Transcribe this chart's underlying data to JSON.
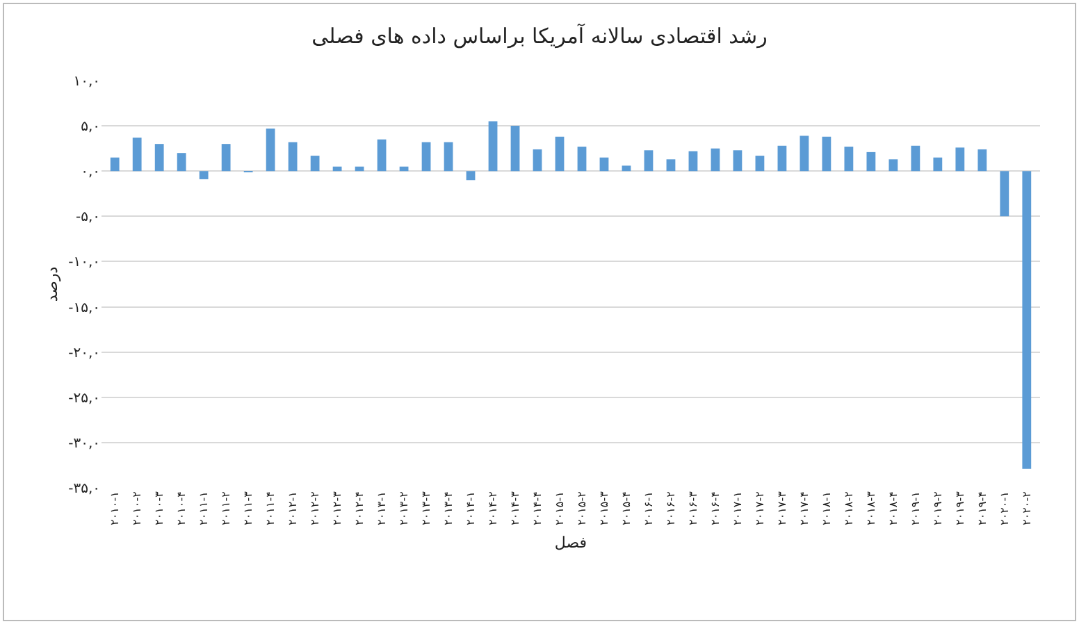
{
  "chart_data": {
    "type": "bar",
    "title": "رشد اقتصادی سالانه آمریکا براساس داده های فصلی",
    "xlabel": "فصل",
    "ylabel": "درصد",
    "categories": [
      "۲۰۱۰-۱",
      "۲۰۱۰-۲",
      "۲۰۱۰-۳",
      "۲۰۱۰-۴",
      "۲۰۱۱-۱",
      "۲۰۱۱-۲",
      "۲۰۱۱-۳",
      "۲۰۱۱-۴",
      "۲۰۱۲-۱",
      "۲۰۱۲-۲",
      "۲۰۱۲-۳",
      "۲۰۱۲-۴",
      "۲۰۱۳-۱",
      "۲۰۱۳-۲",
      "۲۰۱۳-۳",
      "۲۰۱۳-۴",
      "۲۰۱۴-۱",
      "۲۰۱۴-۲",
      "۲۰۱۴-۳",
      "۲۰۱۴-۴",
      "۲۰۱۵-۱",
      "۲۰۱۵-۲",
      "۲۰۱۵-۳",
      "۲۰۱۵-۴",
      "۲۰۱۶-۱",
      "۲۰۱۶-۲",
      "۲۰۱۶-۳",
      "۲۰۱۶-۴",
      "۲۰۱۷-۱",
      "۲۰۱۷-۲",
      "۲۰۱۷-۳",
      "۲۰۱۷-۴",
      "۲۰۱۸-۱",
      "۲۰۱۸-۲",
      "۲۰۱۸-۳",
      "۲۰۱۸-۴",
      "۲۰۱۹-۱",
      "۲۰۱۹-۲",
      "۲۰۱۹-۳",
      "۲۰۱۹-۴",
      "۲۰۲۰-۱",
      "۲۰۲۰-۲"
    ],
    "values": [
      1.5,
      3.7,
      3.0,
      2.0,
      -0.9,
      3.0,
      -0.1,
      4.7,
      3.2,
      1.7,
      0.5,
      0.5,
      3.5,
      0.5,
      3.2,
      3.2,
      -1.0,
      5.5,
      5.0,
      2.4,
      3.8,
      2.7,
      1.5,
      0.6,
      2.3,
      1.3,
      2.2,
      2.5,
      2.3,
      1.7,
      2.8,
      3.9,
      3.8,
      2.7,
      2.1,
      1.3,
      2.8,
      1.5,
      2.6,
      2.4,
      -5.0,
      -32.9
    ],
    "color": "#5b9bd5",
    "ylim": [
      -35,
      10
    ],
    "yticks": [
      {
        "value": 10,
        "label": "۱۰,۰"
      },
      {
        "value": 5,
        "label": "۵,۰"
      },
      {
        "value": 0,
        "label": "۰,۰"
      },
      {
        "value": -5,
        "label": "-۵,۰"
      },
      {
        "value": -10,
        "label": "-۱۰,۰"
      },
      {
        "value": -15,
        "label": "-۱۵,۰"
      },
      {
        "value": -20,
        "label": "-۲۰,۰"
      },
      {
        "value": -25,
        "label": "-۲۵,۰"
      },
      {
        "value": -30,
        "label": "-۳۰,۰"
      },
      {
        "value": -35,
        "label": "-۳۵,۰"
      }
    ],
    "grid": "y"
  }
}
